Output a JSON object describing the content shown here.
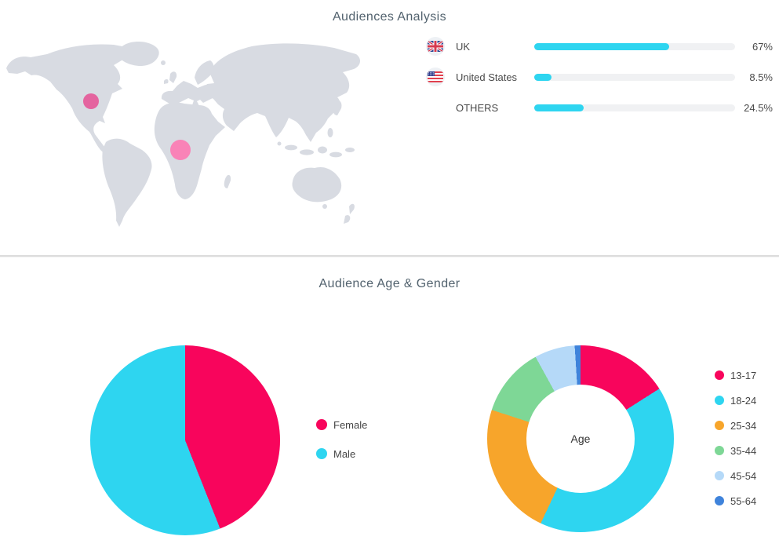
{
  "section_audiences": {
    "title": "Audiences Analysis"
  },
  "section_age_gender": {
    "title": "Audience Age & Gender"
  },
  "map": {
    "land_color": "#d8dbe2",
    "markers": [
      {
        "name": "united-states-marker",
        "x": 111,
        "y": 87,
        "r": 10,
        "color": "#e4649f"
      },
      {
        "name": "west-africa-marker",
        "x": 225,
        "y": 149,
        "r": 13,
        "color": "#f983b7"
      }
    ]
  },
  "chart_data": [
    {
      "id": "countries",
      "type": "bar",
      "orientation": "horizontal",
      "title": "Audiences Analysis",
      "categories": [
        "UK",
        "United States",
        "OTHERS"
      ],
      "values": [
        67,
        8.5,
        24.5
      ],
      "value_labels": [
        "67%",
        "8.5%",
        "24.5%"
      ],
      "flags": [
        "uk",
        "us",
        null
      ],
      "xlim": [
        0,
        100
      ],
      "bar_color": "#2ed5f0",
      "track_color": "#f0f1f3",
      "grid": false
    },
    {
      "id": "gender",
      "type": "pie",
      "title": "Audience Age & Gender",
      "categories": [
        "Female",
        "Male"
      ],
      "values": [
        44,
        56
      ],
      "colors": [
        "#f8055c",
        "#2ed5f0"
      ],
      "legend_position": "right"
    },
    {
      "id": "age",
      "type": "pie",
      "subtype": "donut",
      "center_label": "Age",
      "categories": [
        "13-17",
        "18-24",
        "25-34",
        "35-44",
        "45-54",
        "55-64"
      ],
      "values": [
        16,
        41,
        23,
        12,
        7,
        1
      ],
      "colors": [
        "#f8055c",
        "#2ed5f0",
        "#f7a52b",
        "#7ed796",
        "#b5d9f8",
        "#3f83db"
      ],
      "legend_position": "right"
    }
  ]
}
